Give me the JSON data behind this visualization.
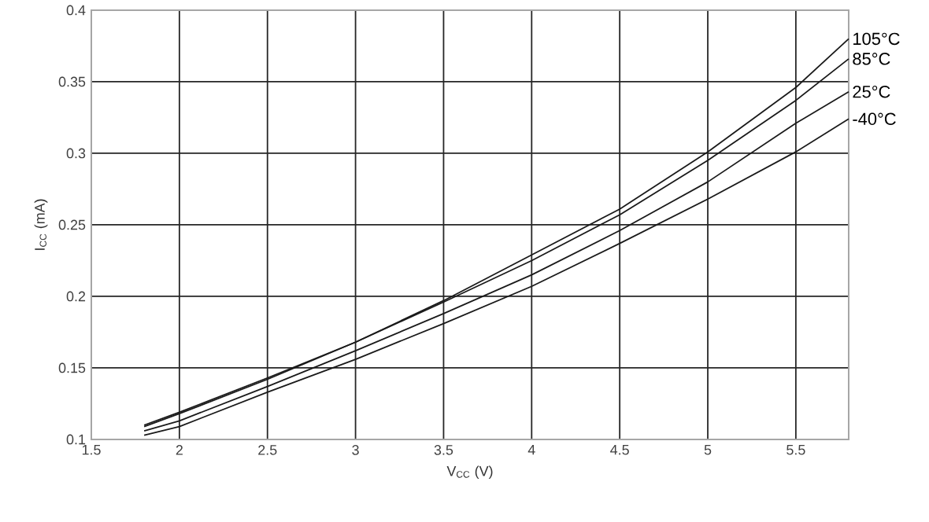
{
  "chart_data": {
    "type": "line",
    "xlabel": "V$_{CC}$ (V)",
    "ylabel": "I$_{CC}$ (mA)",
    "x": [
      1.8,
      2,
      2.5,
      3,
      3.5,
      4,
      4.5,
      5,
      5.5,
      5.8
    ],
    "series": [
      {
        "name": "105°C",
        "color": "#1a1a1a",
        "values": [
          0.11,
          0.119,
          0.143,
          0.168,
          0.197,
          0.229,
          0.261,
          0.301,
          0.346,
          0.38
        ]
      },
      {
        "name": "85°C",
        "color": "#1a1a1a",
        "values": [
          0.109,
          0.118,
          0.142,
          0.168,
          0.196,
          0.225,
          0.257,
          0.295,
          0.337,
          0.366
        ]
      },
      {
        "name": "25°C",
        "color": "#1a1a1a",
        "values": [
          0.106,
          0.113,
          0.137,
          0.162,
          0.188,
          0.215,
          0.246,
          0.28,
          0.321,
          0.343
        ]
      },
      {
        "name": "-40°C",
        "color": "#1a1a1a",
        "values": [
          0.103,
          0.109,
          0.133,
          0.156,
          0.181,
          0.207,
          0.237,
          0.268,
          0.301,
          0.324
        ]
      }
    ],
    "xlim": [
      1.5,
      5.8
    ],
    "ylim": [
      0.1,
      0.4
    ],
    "xticks": [
      1.5,
      2,
      2.5,
      3,
      3.5,
      4,
      4.5,
      5,
      5.5
    ],
    "yticks": [
      0.1,
      0.15,
      0.2,
      0.25,
      0.3,
      0.35,
      0.4
    ],
    "grid": true,
    "legend": false,
    "marker": "none",
    "line_style": "solid"
  }
}
